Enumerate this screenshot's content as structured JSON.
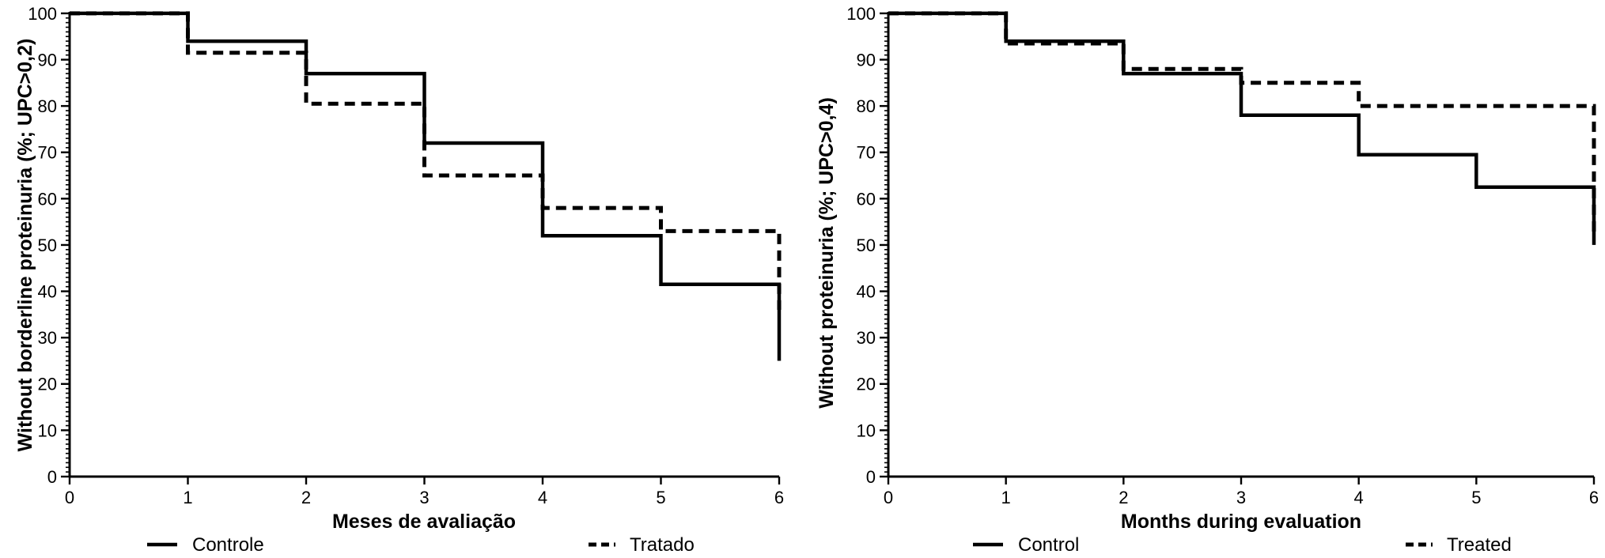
{
  "figure": {
    "background_color": "#ffffff",
    "line_color": "#000000"
  },
  "chart_data": [
    {
      "type": "line",
      "subtype": "kaplan-meier-step",
      "title": "",
      "xlabel": "Meses de avaliação",
      "ylabel": "Without borderline proteinuria (%; UPC>0,2)",
      "xlim": [
        0,
        6
      ],
      "ylim": [
        0,
        100
      ],
      "x_ticks": [
        0,
        1,
        2,
        3,
        4,
        5,
        6
      ],
      "y_ticks": [
        0,
        10,
        20,
        30,
        40,
        50,
        60,
        70,
        80,
        90,
        100
      ],
      "y_minor_tick_step": 1,
      "grid": "off",
      "legend_position": "below-plot",
      "legend": [
        {
          "label": "Controle",
          "style": "solid"
        },
        {
          "label": "Tratado",
          "style": "dashed"
        }
      ],
      "series": [
        {
          "name": "Controle",
          "style": "solid",
          "points": [
            [
              0,
              100
            ],
            [
              1,
              100
            ],
            [
              1,
              94
            ],
            [
              2,
              94
            ],
            [
              2,
              87
            ],
            [
              3,
              87
            ],
            [
              3,
              72
            ],
            [
              4,
              72
            ],
            [
              4,
              52
            ],
            [
              5,
              52
            ],
            [
              5,
              41.5
            ],
            [
              6,
              41.5
            ],
            [
              6,
              25
            ]
          ]
        },
        {
          "name": "Tratado",
          "style": "dashed",
          "points": [
            [
              0,
              100
            ],
            [
              1,
              100
            ],
            [
              1,
              91.5
            ],
            [
              2,
              91.5
            ],
            [
              2,
              80.5
            ],
            [
              3,
              80.5
            ],
            [
              3,
              65
            ],
            [
              4,
              65
            ],
            [
              4,
              58
            ],
            [
              5,
              58
            ],
            [
              5,
              53
            ],
            [
              6,
              53
            ],
            [
              6,
              36
            ]
          ]
        }
      ]
    },
    {
      "type": "line",
      "subtype": "kaplan-meier-step",
      "title": "",
      "xlabel": "Months during evaluation",
      "ylabel": "Without proteinuria (%; UPC>0,4)",
      "xlim": [
        0,
        6
      ],
      "ylim": [
        0,
        100
      ],
      "x_ticks": [
        0,
        1,
        2,
        3,
        4,
        5,
        6
      ],
      "y_ticks": [
        0,
        10,
        20,
        30,
        40,
        50,
        60,
        70,
        80,
        90,
        100
      ],
      "y_minor_tick_step": 1,
      "grid": "off",
      "legend_position": "below-plot",
      "legend": [
        {
          "label": "Control",
          "style": "solid"
        },
        {
          "label": "Treated",
          "style": "dashed"
        }
      ],
      "series": [
        {
          "name": "Control",
          "style": "solid",
          "points": [
            [
              0,
              100
            ],
            [
              1,
              100
            ],
            [
              1,
              94
            ],
            [
              2,
              94
            ],
            [
              2,
              87
            ],
            [
              3,
              87
            ],
            [
              3,
              78
            ],
            [
              4,
              78
            ],
            [
              4,
              69.5
            ],
            [
              5,
              69.5
            ],
            [
              5,
              62.5
            ],
            [
              6,
              62.5
            ],
            [
              6,
              50
            ]
          ]
        },
        {
          "name": "Treated",
          "style": "dashed",
          "points": [
            [
              0,
              100
            ],
            [
              1,
              100
            ],
            [
              1,
              93.5
            ],
            [
              2,
              93.5
            ],
            [
              2,
              88
            ],
            [
              3,
              88
            ],
            [
              3,
              85
            ],
            [
              4,
              85
            ],
            [
              4,
              80
            ],
            [
              6,
              80
            ],
            [
              6,
              52
            ]
          ]
        }
      ]
    }
  ]
}
